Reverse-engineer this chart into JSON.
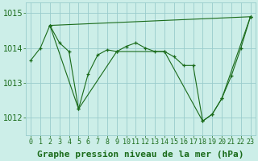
{
  "xlabel": "Graphe pression niveau de la mer (hPa)",
  "bg_color": "#cceee8",
  "grid_color": "#99cccc",
  "line_color": "#1a6b1a",
  "marker_color": "#1a6b1a",
  "text_color": "#1a6b1a",
  "ylim": [
    1011.5,
    1015.3
  ],
  "xlim": [
    -0.5,
    23.5
  ],
  "yticks": [
    1012,
    1013,
    1014,
    1015
  ],
  "xticks": [
    0,
    1,
    2,
    3,
    4,
    5,
    6,
    7,
    8,
    9,
    10,
    11,
    12,
    13,
    14,
    15,
    16,
    17,
    18,
    19,
    20,
    21,
    22,
    23
  ],
  "series": [
    {
      "x": [
        0,
        1,
        2,
        3,
        4,
        5,
        6,
        7,
        8,
        9,
        10,
        11,
        12,
        13,
        14,
        15,
        16,
        17,
        18,
        19,
        20,
        21,
        22,
        23
      ],
      "y": [
        1013.65,
        1014.0,
        1014.65,
        1014.15,
        1013.9,
        1012.25,
        1013.25,
        1013.8,
        1013.95,
        1013.9,
        1014.05,
        1014.15,
        1014.0,
        1013.9,
        1013.9,
        1013.75,
        1013.5,
        1013.5,
        1011.9,
        1012.1,
        1012.55,
        1013.2,
        1014.0,
        1014.9
      ]
    },
    {
      "x": [
        2,
        23
      ],
      "y": [
        1014.65,
        1014.9
      ]
    },
    {
      "x": [
        2,
        5,
        9,
        14,
        18,
        19,
        20,
        23
      ],
      "y": [
        1014.65,
        1012.25,
        1013.9,
        1013.9,
        1011.9,
        1012.1,
        1012.55,
        1014.9
      ]
    }
  ],
  "fontsize_xlabel": 8,
  "fontsize_ytick": 7,
  "fontsize_xtick": 6
}
